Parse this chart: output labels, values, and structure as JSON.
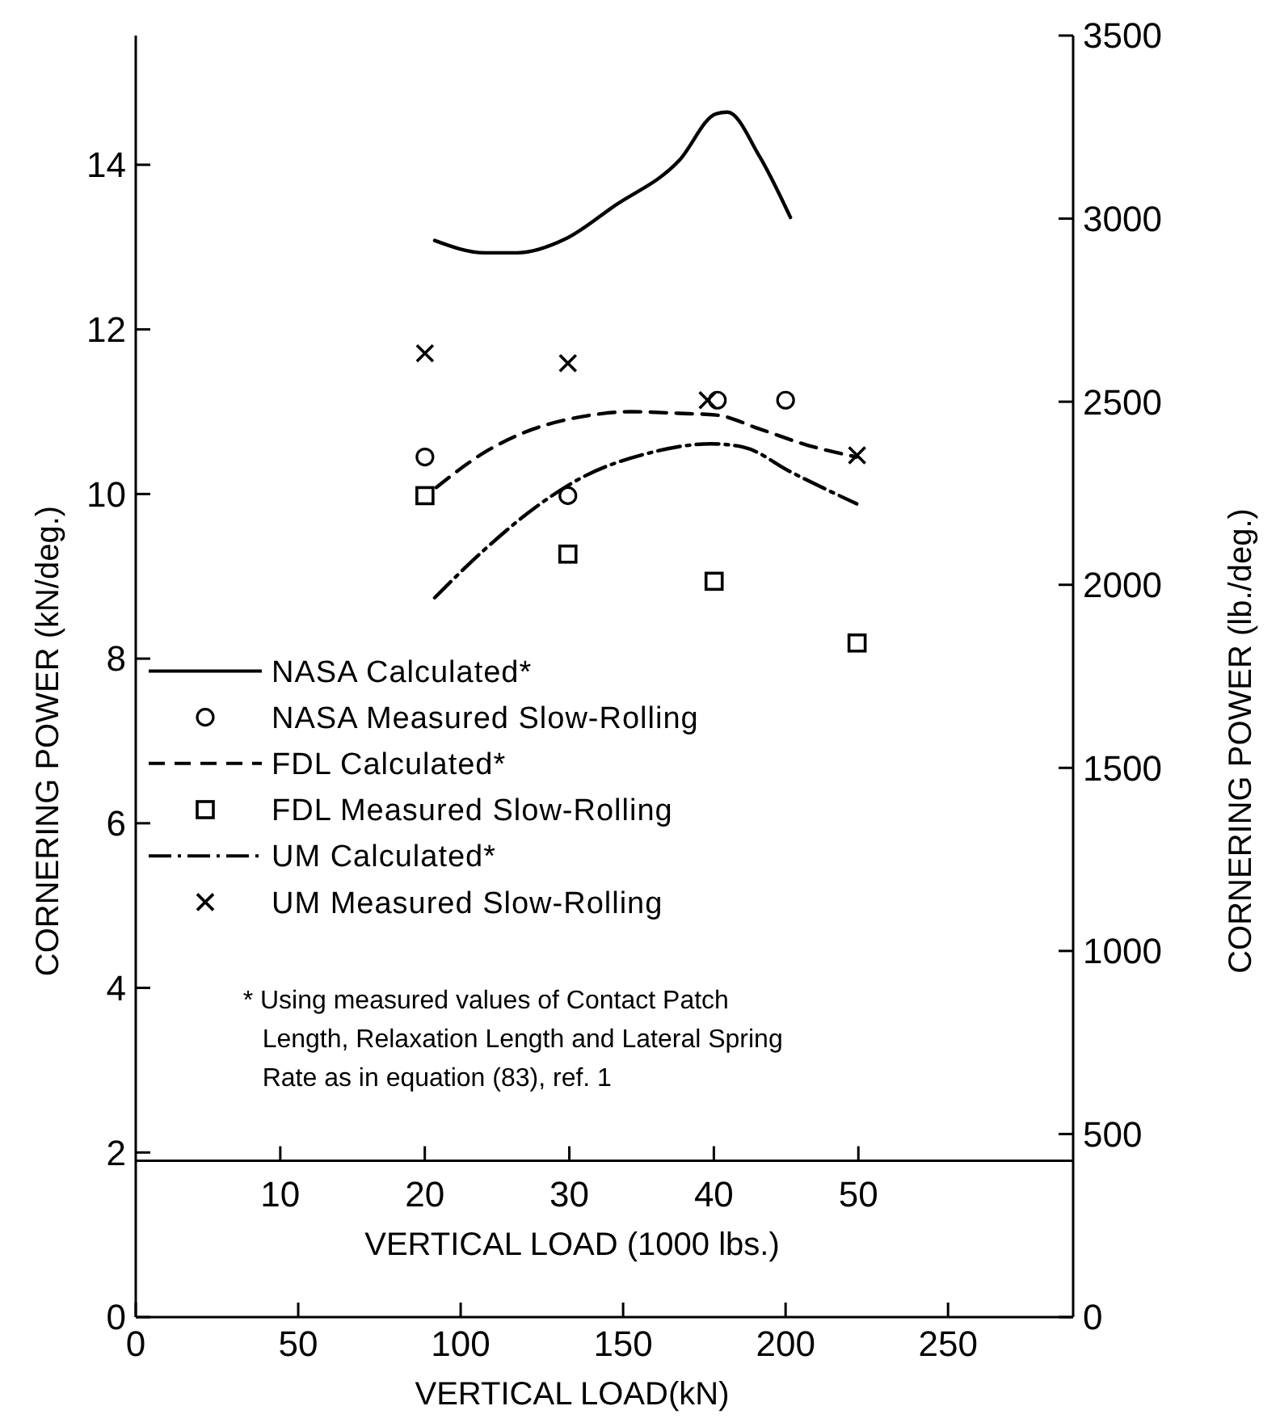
{
  "chart_data": {
    "type": "line",
    "xlabel": "VERTICAL LOAD(kN)",
    "x2label": "VERTICAL LOAD (1000 lbs.)",
    "ylabel": "CORNERING POWER (kN/deg.)",
    "y2label": "CORNERING POWER (lb./deg.)",
    "xlim": [
      0,
      288.5
    ],
    "xticks": [
      0,
      50,
      100,
      150,
      200,
      250
    ],
    "x2lim": [
      0,
      64.86
    ],
    "x2ticks": [
      10,
      20,
      30,
      40,
      50
    ],
    "ylim": [
      0,
      15.57
    ],
    "yticks": [
      0,
      2,
      4,
      6,
      8,
      10,
      12,
      14
    ],
    "y2lim": [
      0,
      3500
    ],
    "y2ticks": [
      0,
      500,
      1000,
      1500,
      2000,
      2500,
      3000,
      3500
    ],
    "grid": false,
    "legend": "left",
    "series": [
      {
        "name": "NASA Calculated*",
        "color": "#000000",
        "marker": "none",
        "line_style": "solid",
        "x": [
          92,
          107.5,
          117.4,
          132.3,
          147.3,
          167.2,
          178.6,
          182.1,
          192,
          201.5
        ],
        "values": [
          13.08,
          12.93,
          12.93,
          13.1,
          13.5,
          14.05,
          14.62,
          14.64,
          14.1,
          13.36
        ]
      },
      {
        "name": "NASA Measured Slow-Rolling",
        "type": "scatter",
        "color": "#000000",
        "marker": "circle",
        "x": [
          89,
          133,
          179,
          200
        ],
        "values": [
          10.45,
          9.98,
          11.14,
          11.14
        ]
      },
      {
        "name": "FDL Calculated*",
        "color": "#000000",
        "marker": "none",
        "line_style": "dashed",
        "x": [
          92.5,
          107.5,
          122.4,
          137.3,
          152.2,
          167.2,
          178.6,
          192,
          207,
          221.9
        ],
        "values": [
          10.08,
          10.51,
          10.79,
          10.94,
          11.0,
          10.98,
          10.96,
          10.79,
          10.59,
          10.45
        ]
      },
      {
        "name": "FDL Measured Slow-Rolling",
        "type": "scatter",
        "color": "#000000",
        "marker": "square",
        "x": [
          89,
          133,
          178,
          222
        ],
        "values": [
          9.98,
          9.27,
          8.94,
          8.19
        ]
      },
      {
        "name": "UM Calculated*",
        "color": "#000000",
        "marker": "none",
        "line_style": "dashdot",
        "x": [
          92,
          107.5,
          122.4,
          137.3,
          157.2,
          177.1,
          187,
          201.5,
          221.9
        ],
        "values": [
          8.74,
          9.33,
          9.82,
          10.2,
          10.49,
          10.61,
          10.57,
          10.27,
          9.88
        ]
      },
      {
        "name": "UM Measured Slow-Rolling",
        "type": "scatter",
        "color": "#000000",
        "marker": "cross",
        "x": [
          89,
          133,
          176,
          222
        ],
        "values": [
          11.71,
          11.59,
          11.14,
          10.47
        ]
      }
    ],
    "annotations": [
      "* Using measured values of Contact Patch Length, Relaxation Length and Lateral Spring Rate as in equation (83), ref. 1"
    ]
  }
}
